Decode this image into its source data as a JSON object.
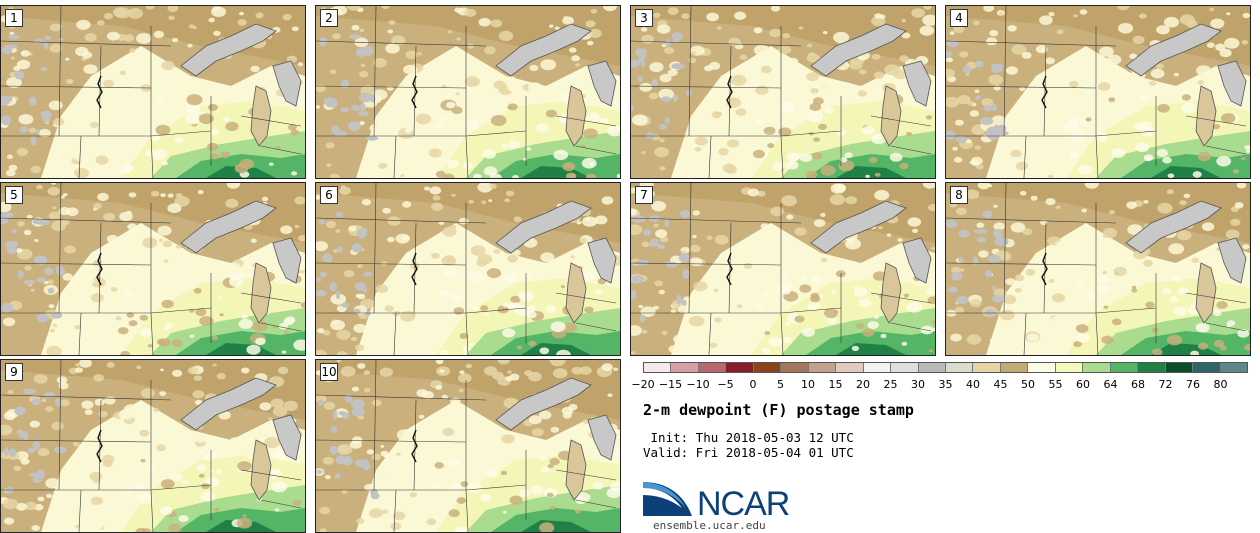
{
  "panels": [
    {
      "label": "1"
    },
    {
      "label": "2"
    },
    {
      "label": "3"
    },
    {
      "label": "4"
    },
    {
      "label": "5"
    },
    {
      "label": "6"
    },
    {
      "label": "7"
    },
    {
      "label": "8"
    },
    {
      "label": "9"
    },
    {
      "label": "10"
    }
  ],
  "colorbar": {
    "colors": [
      "#f6e8ec",
      "#d6a0a8",
      "#b8676f",
      "#861d28",
      "#8a4419",
      "#a57659",
      "#c3a08c",
      "#e0ccbf",
      "#f2f2f2",
      "#dedede",
      "#b9b9b9",
      "#dcdccc",
      "#e6d6a6",
      "#c4ab74",
      "#fdfce6",
      "#f4f9bc",
      "#a9dc8f",
      "#53b565",
      "#1f8146",
      "#0c4d2b",
      "#2f6568",
      "#5f878a"
    ],
    "ticks": [
      "−20",
      "−15",
      "−10",
      "−5",
      "0",
      "5",
      "10",
      "15",
      "20",
      "25",
      "30",
      "35",
      "40",
      "45",
      "50",
      "55",
      "60",
      "64",
      "68",
      "72",
      "76",
      "80"
    ]
  },
  "title": "2-m dewpoint (F) postage stamp",
  "init": " Init: Thu 2018-05-03 12 UTC",
  "valid": "Valid: Fri 2018-05-04 01 UTC",
  "logo": {
    "text": "NCAR",
    "url": "ensemble.ucar.edu"
  }
}
